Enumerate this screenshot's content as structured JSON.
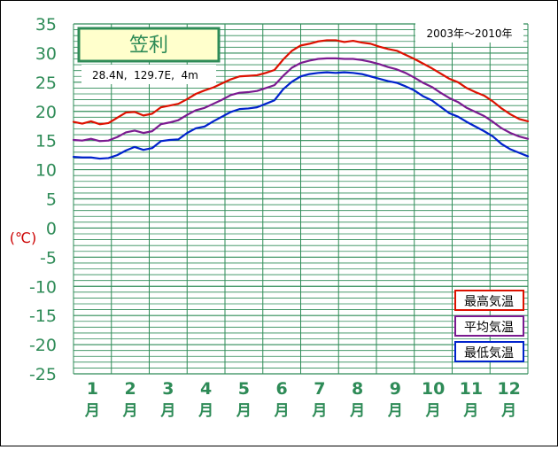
{
  "chart_data": {
    "type": "line",
    "title": "笠利",
    "station_info": "28.4N,  129.7E,  4m",
    "period": "2003年～2010年",
    "ylabel": "(℃)",
    "ylim": [
      -25,
      35
    ],
    "yticks": [
      "35",
      "30",
      "25",
      "20",
      "15",
      "10",
      "5",
      "0",
      "-5",
      "-10",
      "-15",
      "-20",
      "-25"
    ],
    "months": [
      "1",
      "2",
      "3",
      "4",
      "5",
      "6",
      "7",
      "8",
      "9",
      "10",
      "11",
      "12"
    ],
    "month_suffix": "月",
    "legend_position": "bottom-right",
    "colors": {
      "axis_text": "#2e8b57",
      "grid": "#2e8b57",
      "ylabel": "#cc0000"
    },
    "series": [
      {
        "name": "最高気温",
        "color": "#dd1100",
        "values": [
          18.2,
          17.9,
          18.3,
          17.8,
          18.0,
          18.9,
          19.8,
          19.9,
          19.3,
          19.6,
          20.7,
          21.0,
          21.3,
          22.1,
          23.0,
          23.6,
          24.1,
          24.8,
          25.5,
          26.0,
          26.1,
          26.2,
          26.6,
          27.1,
          28.9,
          30.4,
          31.3,
          31.6,
          32.0,
          32.2,
          32.2,
          31.9,
          32.1,
          31.8,
          31.6,
          31.1,
          30.7,
          30.4,
          29.7,
          29.0,
          28.2,
          27.4,
          26.5,
          25.6,
          25.0,
          24.0,
          23.3,
          22.7,
          21.7,
          20.5,
          19.5,
          18.7,
          18.3
        ]
      },
      {
        "name": "平均気温",
        "color": "#7a1a90",
        "values": [
          15.1,
          15.0,
          15.3,
          14.9,
          15.0,
          15.6,
          16.4,
          16.7,
          16.3,
          16.6,
          17.8,
          18.1,
          18.5,
          19.4,
          20.2,
          20.6,
          21.3,
          22.0,
          22.8,
          23.2,
          23.3,
          23.5,
          24.0,
          24.5,
          26.1,
          27.5,
          28.3,
          28.7,
          29.0,
          29.1,
          29.1,
          29.0,
          29.0,
          28.8,
          28.5,
          28.1,
          27.6,
          27.2,
          26.6,
          25.8,
          24.9,
          24.2,
          23.2,
          22.3,
          21.6,
          20.6,
          19.9,
          19.2,
          18.2,
          17.1,
          16.3,
          15.7,
          15.3
        ]
      },
      {
        "name": "最低気温",
        "color": "#0022cc",
        "values": [
          12.2,
          12.1,
          12.1,
          11.9,
          12.0,
          12.5,
          13.3,
          13.9,
          13.4,
          13.7,
          14.9,
          15.1,
          15.2,
          16.3,
          17.1,
          17.4,
          18.3,
          19.1,
          19.9,
          20.4,
          20.5,
          20.7,
          21.3,
          21.9,
          23.8,
          25.1,
          26.0,
          26.4,
          26.6,
          26.7,
          26.6,
          26.7,
          26.6,
          26.4,
          26.0,
          25.6,
          25.2,
          24.9,
          24.3,
          23.6,
          22.6,
          21.9,
          20.8,
          19.7,
          19.1,
          18.2,
          17.4,
          16.6,
          15.7,
          14.4,
          13.5,
          12.9,
          12.3
        ]
      }
    ]
  }
}
